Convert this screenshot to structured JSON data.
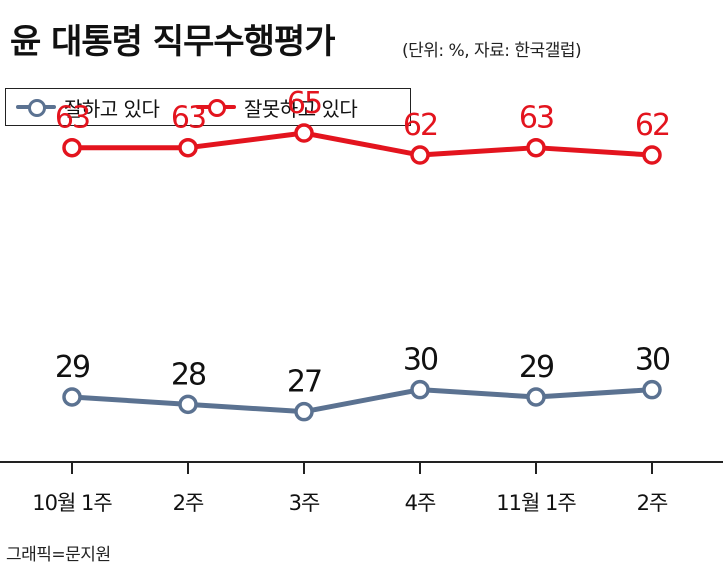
{
  "header": {
    "title": "윤 대통령 직무수행평가",
    "subtitle": "(단위: %, 자료: 한국갤럽)"
  },
  "legend": {
    "items": [
      {
        "label": "잘하고 있다",
        "color": "#5b7291"
      },
      {
        "label": "잘못하고 있다",
        "color": "#e3141e"
      }
    ]
  },
  "chart_data": {
    "type": "line",
    "categories": [
      "10월 1주",
      "2주",
      "3주",
      "4주",
      "11월 1주",
      "2주"
    ],
    "series": [
      {
        "name": "잘하고 있다",
        "values": [
          29,
          28,
          27,
          30,
          29,
          30
        ],
        "color": "#5b7291"
      },
      {
        "name": "잘못하고 있다",
        "values": [
          63,
          63,
          65,
          62,
          63,
          62
        ],
        "color": "#e3141e"
      }
    ],
    "title": "윤 대통령 직무수행평가",
    "xlabel": "",
    "ylabel": "",
    "unit": "%",
    "grid": false,
    "legend_position": "top-left"
  },
  "footer": {
    "credit": "그래픽=문지원"
  }
}
